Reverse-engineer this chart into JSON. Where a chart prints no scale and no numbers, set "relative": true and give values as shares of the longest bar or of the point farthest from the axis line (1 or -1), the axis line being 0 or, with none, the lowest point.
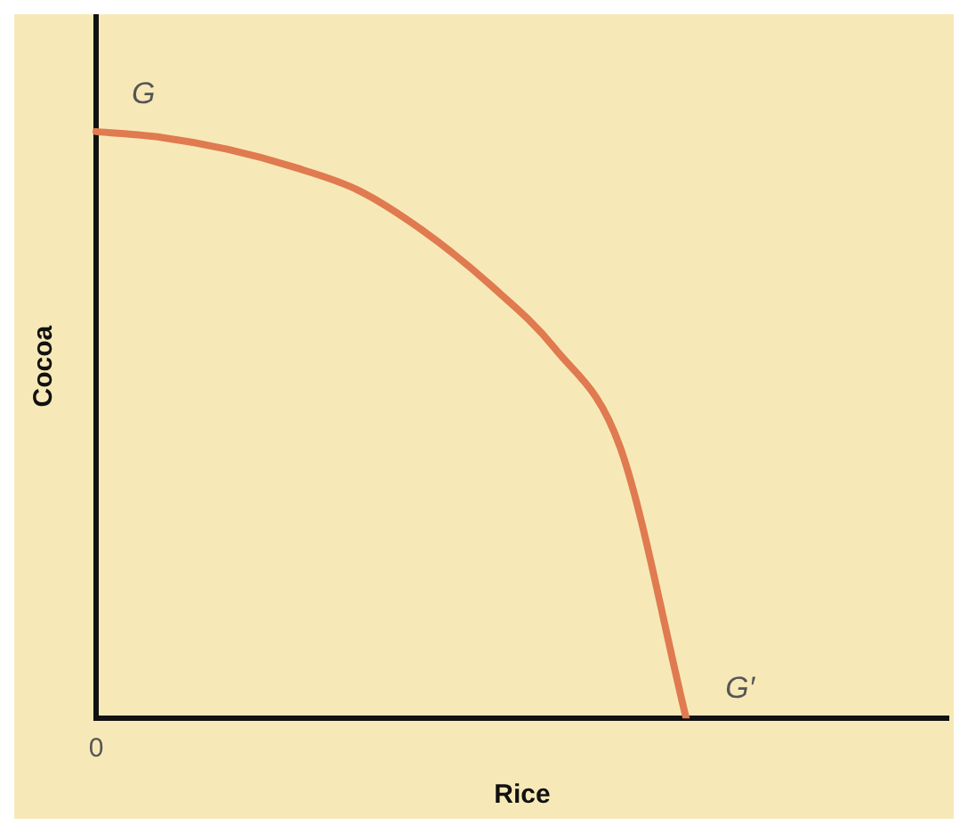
{
  "chart_data": {
    "type": "line",
    "relative": true,
    "xlabel": "Rice",
    "ylabel": "Cocoa",
    "categories": [
      null,
      null,
      null,
      null,
      null,
      null,
      null,
      null,
      null,
      null,
      null,
      null,
      null,
      null
    ],
    "series": [
      {
        "color": "#e07a50",
        "values": [
          1,
          0.99,
          0.97,
          0.94,
          0.9,
          0.83,
          0.74,
          0.63,
          0.46,
          0,
          null,
          null,
          null,
          null
        ]
      }
    ],
    "annotations": [
      "G",
      "G′",
      "0"
    ],
    "marker": "none",
    "line_style": "solid",
    "grid": false,
    "legend": false
  }
}
